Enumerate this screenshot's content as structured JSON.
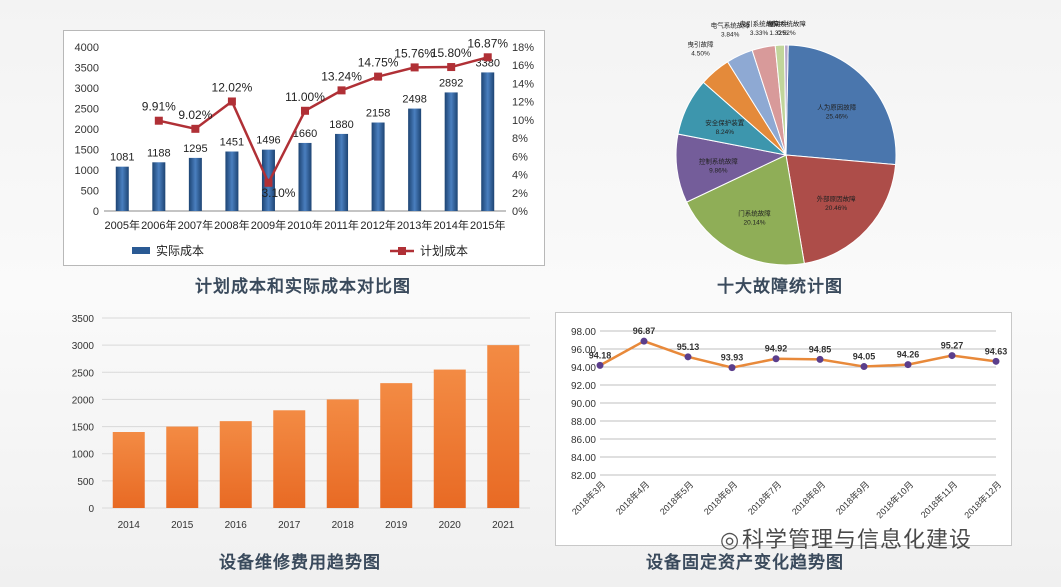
{
  "chart_data": [
    {
      "type": "bar+line",
      "caption": "计划成本和实际成本对比图",
      "categories": [
        "2005年",
        "2006年",
        "2007年",
        "2008年",
        "2009年",
        "2010年",
        "2011年",
        "2012年",
        "2013年",
        "2014年",
        "2015年"
      ],
      "series": [
        {
          "name": "实际成本",
          "type": "bar",
          "values": [
            1081,
            1188,
            1295,
            1451,
            1496,
            1660,
            1880,
            2158,
            2498,
            2892,
            3380
          ],
          "labels": [
            "1081",
            "1188",
            "1295",
            "1451",
            "1496",
            "1660",
            "1880",
            "2158",
            "2498",
            "2892",
            "3380"
          ],
          "color": "#2a5a94"
        },
        {
          "name": "计划成本",
          "type": "line",
          "axis": "right",
          "values": [
            null,
            9.91,
            9.02,
            12.02,
            3.1,
            11.0,
            13.24,
            14.75,
            15.76,
            15.8,
            16.87
          ],
          "labels": [
            "",
            "9.91%",
            "9.02%",
            "12.02%",
            "3.10%",
            "11.00%",
            "13.24%",
            "14.75%",
            "15.76%",
            "15.80%",
            "16.87%"
          ],
          "color": "#b03036"
        }
      ],
      "y_left": {
        "ticks": [
          0,
          500,
          1000,
          1500,
          2000,
          2500,
          3000,
          3500,
          4000
        ],
        "ylim": [
          0,
          4000
        ]
      },
      "y_right": {
        "ticks": [
          "0%",
          "2%",
          "4%",
          "6%",
          "8%",
          "10%",
          "12%",
          "14%",
          "16%",
          "18%"
        ],
        "ylim": [
          0,
          18
        ]
      },
      "legend_position": "bottom"
    },
    {
      "type": "pie",
      "caption": "十大故障统计图",
      "slices": [
        {
          "label": "人为原因故障",
          "pct": "25.46%",
          "value": 25.46,
          "color": "#4a76ad"
        },
        {
          "label": "外部原因故障",
          "pct": "20.46%",
          "value": 20.46,
          "color": "#ad4d49"
        },
        {
          "label": "门系统故障",
          "pct": "20.14%",
          "value": 20.14,
          "color": "#8fae57"
        },
        {
          "label": "控制系统故障",
          "pct": "9.86%",
          "value": 9.86,
          "color": "#745d9a"
        },
        {
          "label": "安全保护装置",
          "pct": "8.24%",
          "value": 8.24,
          "color": "#3d96ad"
        },
        {
          "label": "曳引故障",
          "pct": "4.50%",
          "value": 4.5,
          "color": "#e48a3a"
        },
        {
          "label": "电气系统故障",
          "pct": "3.84%",
          "value": 3.84,
          "color": "#8ea9d3"
        },
        {
          "label": "曳引系统故障",
          "pct": "3.33%",
          "value": 3.33,
          "color": "#d89a9a"
        },
        {
          "label": "缓冲中",
          "pct": "1.32%",
          "value": 1.32,
          "color": "#c1d59b"
        },
        {
          "label": "导向系统故障",
          "pct": "0.52%",
          "value": 0.52,
          "color": "#b5a7cb"
        }
      ]
    },
    {
      "type": "bar",
      "caption": "设备维修费用趋势图",
      "categories": [
        "2014",
        "2015",
        "2016",
        "2017",
        "2018",
        "2019",
        "2020",
        "2021"
      ],
      "values": [
        1400,
        1500,
        1600,
        1800,
        2000,
        2300,
        2550,
        3000
      ],
      "ylim": [
        0,
        3500
      ],
      "yticks": [
        0,
        500,
        1000,
        1500,
        2000,
        2500,
        3000,
        3500
      ],
      "color": "#ef7a30"
    },
    {
      "type": "line",
      "caption": "设备固定资产变化趋势图",
      "categories": [
        "2018年3月",
        "2018年4月",
        "2018年5月",
        "2018年6月",
        "2018年7月",
        "2018年8月",
        "2018年9月",
        "2018年10月",
        "2018年11月",
        "2018年12月"
      ],
      "values": [
        94.18,
        96.87,
        95.13,
        93.93,
        94.92,
        94.85,
        94.05,
        94.26,
        95.27,
        94.63
      ],
      "labels": [
        "94.18",
        "96.87",
        "95.13",
        "93.93",
        "94.92",
        "94.85",
        "94.05",
        "94.26",
        "95.27",
        "94.63"
      ],
      "ylim": [
        82,
        98
      ],
      "yticks": [
        "82.00",
        "84.00",
        "86.00",
        "88.00",
        "90.00",
        "92.00",
        "94.00",
        "96.00",
        "98.00"
      ],
      "line_color": "#e8893a",
      "marker_color": "#5b3e8c"
    }
  ],
  "watermark": "科学管理与信息化建设"
}
